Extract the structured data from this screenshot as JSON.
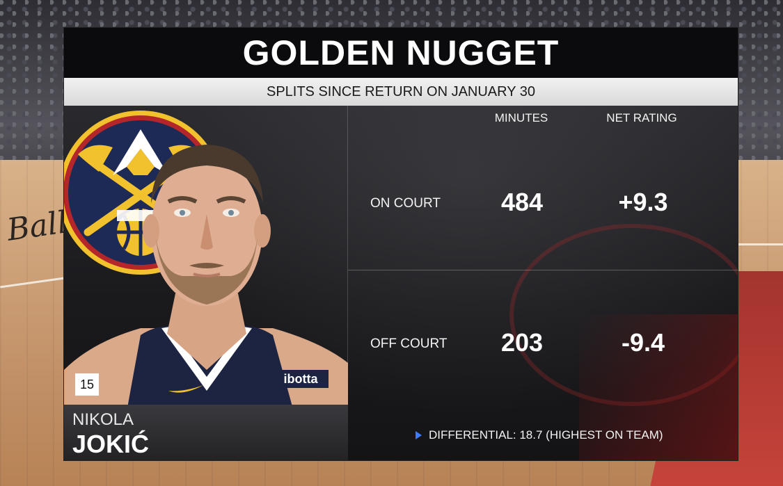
{
  "graphic": {
    "title": "GOLDEN NUGGET",
    "subtitle": "SPLITS SINCE RETURN ON JANUARY 30"
  },
  "player": {
    "first_name": "NIKOLA",
    "last_name": "JOKIĆ",
    "jersey_number": "15",
    "jersey_sponsor": "ibotta"
  },
  "table": {
    "columns": [
      "MINUTES",
      "NET RATING"
    ],
    "rows": [
      {
        "label": "ON COURT",
        "minutes": "484",
        "net_rating": "+9.3"
      },
      {
        "label": "OFF COURT",
        "minutes": "203",
        "net_rating": "-9.4"
      }
    ],
    "footnote": "DIFFERENTIAL: 18.7 (HIGHEST ON TEAM)"
  },
  "background": {
    "court_text": "Ball"
  },
  "colors": {
    "nuggets_navy": "#1d2a55",
    "nuggets_gold": "#f2c12e",
    "nuggets_red": "#b5262a",
    "accent_arrow": "#3d7bff"
  },
  "icons": {
    "team_logo": "denver-nuggets-logo",
    "footnote_marker": "triangle-right-icon"
  }
}
